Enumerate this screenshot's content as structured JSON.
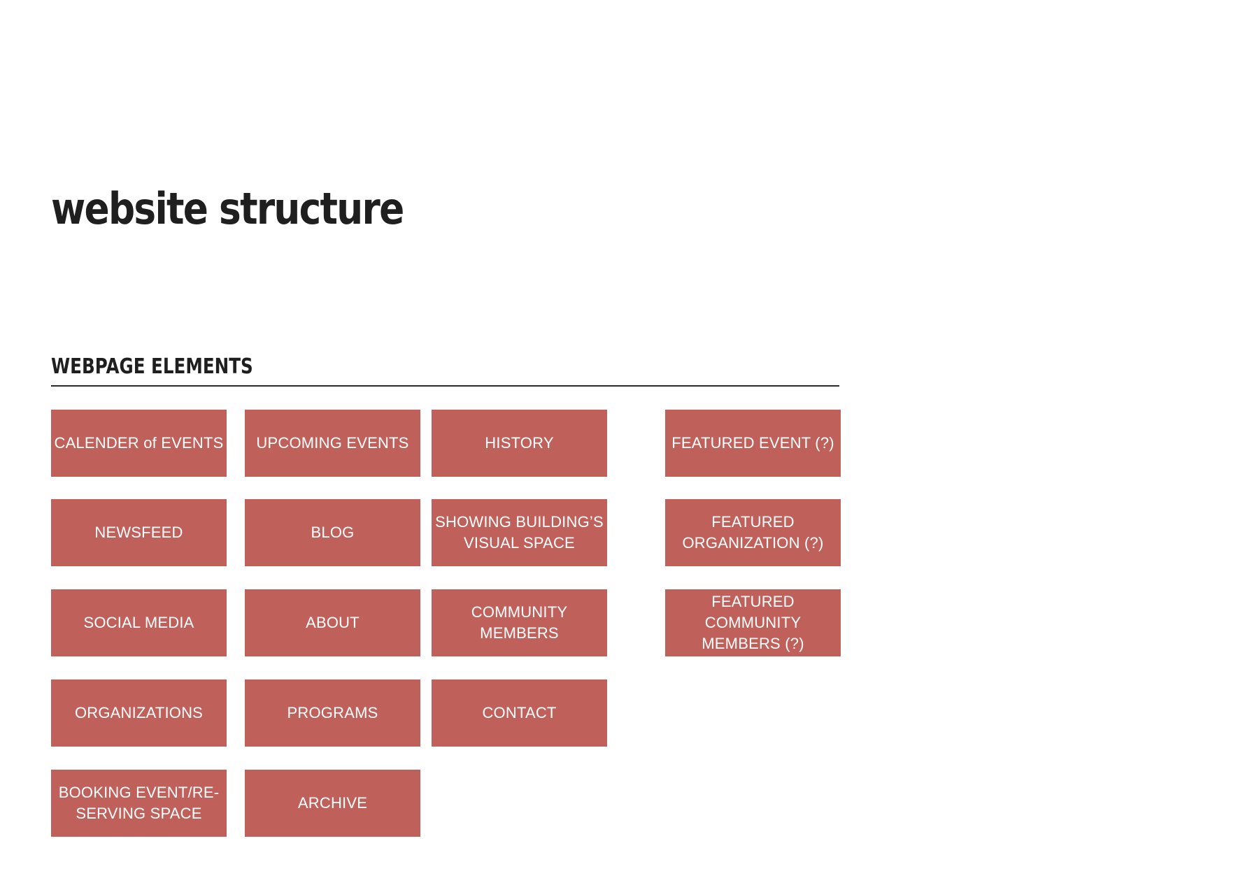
{
  "title": "website structure",
  "section": {
    "heading": "WEBPAGE ELEMENTS",
    "elements": [
      "CALENDER of EVENTS",
      "UPCOMING EVENTS",
      "HISTORY",
      "FEATURED EVENT (?)",
      "NEWSFEED",
      "BLOG",
      "SHOWING BUILDING’S\nVISUAL SPACE",
      "FEATURED\nORGANIZATION (?)",
      "SOCIAL MEDIA",
      "ABOUT",
      "COMMUNITY MEMBERS",
      "FEATURED COMMUNITY\nMEMBERS (?)",
      "ORGANIZATIONS",
      "PROGRAMS",
      "CONTACT",
      "BOOKING EVENT/RE-\nSERVING SPACE",
      "ARCHIVE"
    ]
  },
  "colors": {
    "box_fill": "#c0605a",
    "box_text": "#ffffff",
    "heading_text": "#1f1f1f"
  }
}
